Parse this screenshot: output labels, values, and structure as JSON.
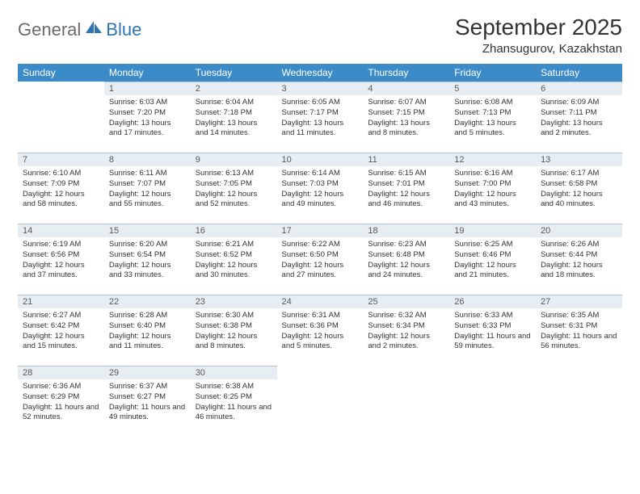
{
  "logo": {
    "part1": "General",
    "part2": "Blue"
  },
  "title": "September 2025",
  "location": "Zhansugurov, Kazakhstan",
  "colors": {
    "header_bg": "#3b8bc9",
    "header_text": "#ffffff",
    "daynum_bg": "#e6edf3",
    "week_divider": "#2f5d8a",
    "logo_gray": "#6b6b6b",
    "logo_blue": "#2f74b5"
  },
  "weekdays": [
    "Sunday",
    "Monday",
    "Tuesday",
    "Wednesday",
    "Thursday",
    "Friday",
    "Saturday"
  ],
  "weeks": [
    [
      {
        "n": "",
        "sr": "",
        "ss": "",
        "dl": ""
      },
      {
        "n": "1",
        "sr": "Sunrise: 6:03 AM",
        "ss": "Sunset: 7:20 PM",
        "dl": "Daylight: 13 hours and 17 minutes."
      },
      {
        "n": "2",
        "sr": "Sunrise: 6:04 AM",
        "ss": "Sunset: 7:18 PM",
        "dl": "Daylight: 13 hours and 14 minutes."
      },
      {
        "n": "3",
        "sr": "Sunrise: 6:05 AM",
        "ss": "Sunset: 7:17 PM",
        "dl": "Daylight: 13 hours and 11 minutes."
      },
      {
        "n": "4",
        "sr": "Sunrise: 6:07 AM",
        "ss": "Sunset: 7:15 PM",
        "dl": "Daylight: 13 hours and 8 minutes."
      },
      {
        "n": "5",
        "sr": "Sunrise: 6:08 AM",
        "ss": "Sunset: 7:13 PM",
        "dl": "Daylight: 13 hours and 5 minutes."
      },
      {
        "n": "6",
        "sr": "Sunrise: 6:09 AM",
        "ss": "Sunset: 7:11 PM",
        "dl": "Daylight: 13 hours and 2 minutes."
      }
    ],
    [
      {
        "n": "7",
        "sr": "Sunrise: 6:10 AM",
        "ss": "Sunset: 7:09 PM",
        "dl": "Daylight: 12 hours and 58 minutes."
      },
      {
        "n": "8",
        "sr": "Sunrise: 6:11 AM",
        "ss": "Sunset: 7:07 PM",
        "dl": "Daylight: 12 hours and 55 minutes."
      },
      {
        "n": "9",
        "sr": "Sunrise: 6:13 AM",
        "ss": "Sunset: 7:05 PM",
        "dl": "Daylight: 12 hours and 52 minutes."
      },
      {
        "n": "10",
        "sr": "Sunrise: 6:14 AM",
        "ss": "Sunset: 7:03 PM",
        "dl": "Daylight: 12 hours and 49 minutes."
      },
      {
        "n": "11",
        "sr": "Sunrise: 6:15 AM",
        "ss": "Sunset: 7:01 PM",
        "dl": "Daylight: 12 hours and 46 minutes."
      },
      {
        "n": "12",
        "sr": "Sunrise: 6:16 AM",
        "ss": "Sunset: 7:00 PM",
        "dl": "Daylight: 12 hours and 43 minutes."
      },
      {
        "n": "13",
        "sr": "Sunrise: 6:17 AM",
        "ss": "Sunset: 6:58 PM",
        "dl": "Daylight: 12 hours and 40 minutes."
      }
    ],
    [
      {
        "n": "14",
        "sr": "Sunrise: 6:19 AM",
        "ss": "Sunset: 6:56 PM",
        "dl": "Daylight: 12 hours and 37 minutes."
      },
      {
        "n": "15",
        "sr": "Sunrise: 6:20 AM",
        "ss": "Sunset: 6:54 PM",
        "dl": "Daylight: 12 hours and 33 minutes."
      },
      {
        "n": "16",
        "sr": "Sunrise: 6:21 AM",
        "ss": "Sunset: 6:52 PM",
        "dl": "Daylight: 12 hours and 30 minutes."
      },
      {
        "n": "17",
        "sr": "Sunrise: 6:22 AM",
        "ss": "Sunset: 6:50 PM",
        "dl": "Daylight: 12 hours and 27 minutes."
      },
      {
        "n": "18",
        "sr": "Sunrise: 6:23 AM",
        "ss": "Sunset: 6:48 PM",
        "dl": "Daylight: 12 hours and 24 minutes."
      },
      {
        "n": "19",
        "sr": "Sunrise: 6:25 AM",
        "ss": "Sunset: 6:46 PM",
        "dl": "Daylight: 12 hours and 21 minutes."
      },
      {
        "n": "20",
        "sr": "Sunrise: 6:26 AM",
        "ss": "Sunset: 6:44 PM",
        "dl": "Daylight: 12 hours and 18 minutes."
      }
    ],
    [
      {
        "n": "21",
        "sr": "Sunrise: 6:27 AM",
        "ss": "Sunset: 6:42 PM",
        "dl": "Daylight: 12 hours and 15 minutes."
      },
      {
        "n": "22",
        "sr": "Sunrise: 6:28 AM",
        "ss": "Sunset: 6:40 PM",
        "dl": "Daylight: 12 hours and 11 minutes."
      },
      {
        "n": "23",
        "sr": "Sunrise: 6:30 AM",
        "ss": "Sunset: 6:38 PM",
        "dl": "Daylight: 12 hours and 8 minutes."
      },
      {
        "n": "24",
        "sr": "Sunrise: 6:31 AM",
        "ss": "Sunset: 6:36 PM",
        "dl": "Daylight: 12 hours and 5 minutes."
      },
      {
        "n": "25",
        "sr": "Sunrise: 6:32 AM",
        "ss": "Sunset: 6:34 PM",
        "dl": "Daylight: 12 hours and 2 minutes."
      },
      {
        "n": "26",
        "sr": "Sunrise: 6:33 AM",
        "ss": "Sunset: 6:33 PM",
        "dl": "Daylight: 11 hours and 59 minutes."
      },
      {
        "n": "27",
        "sr": "Sunrise: 6:35 AM",
        "ss": "Sunset: 6:31 PM",
        "dl": "Daylight: 11 hours and 56 minutes."
      }
    ],
    [
      {
        "n": "28",
        "sr": "Sunrise: 6:36 AM",
        "ss": "Sunset: 6:29 PM",
        "dl": "Daylight: 11 hours and 52 minutes."
      },
      {
        "n": "29",
        "sr": "Sunrise: 6:37 AM",
        "ss": "Sunset: 6:27 PM",
        "dl": "Daylight: 11 hours and 49 minutes."
      },
      {
        "n": "30",
        "sr": "Sunrise: 6:38 AM",
        "ss": "Sunset: 6:25 PM",
        "dl": "Daylight: 11 hours and 46 minutes."
      },
      {
        "n": "",
        "sr": "",
        "ss": "",
        "dl": ""
      },
      {
        "n": "",
        "sr": "",
        "ss": "",
        "dl": ""
      },
      {
        "n": "",
        "sr": "",
        "ss": "",
        "dl": ""
      },
      {
        "n": "",
        "sr": "",
        "ss": "",
        "dl": ""
      }
    ]
  ]
}
